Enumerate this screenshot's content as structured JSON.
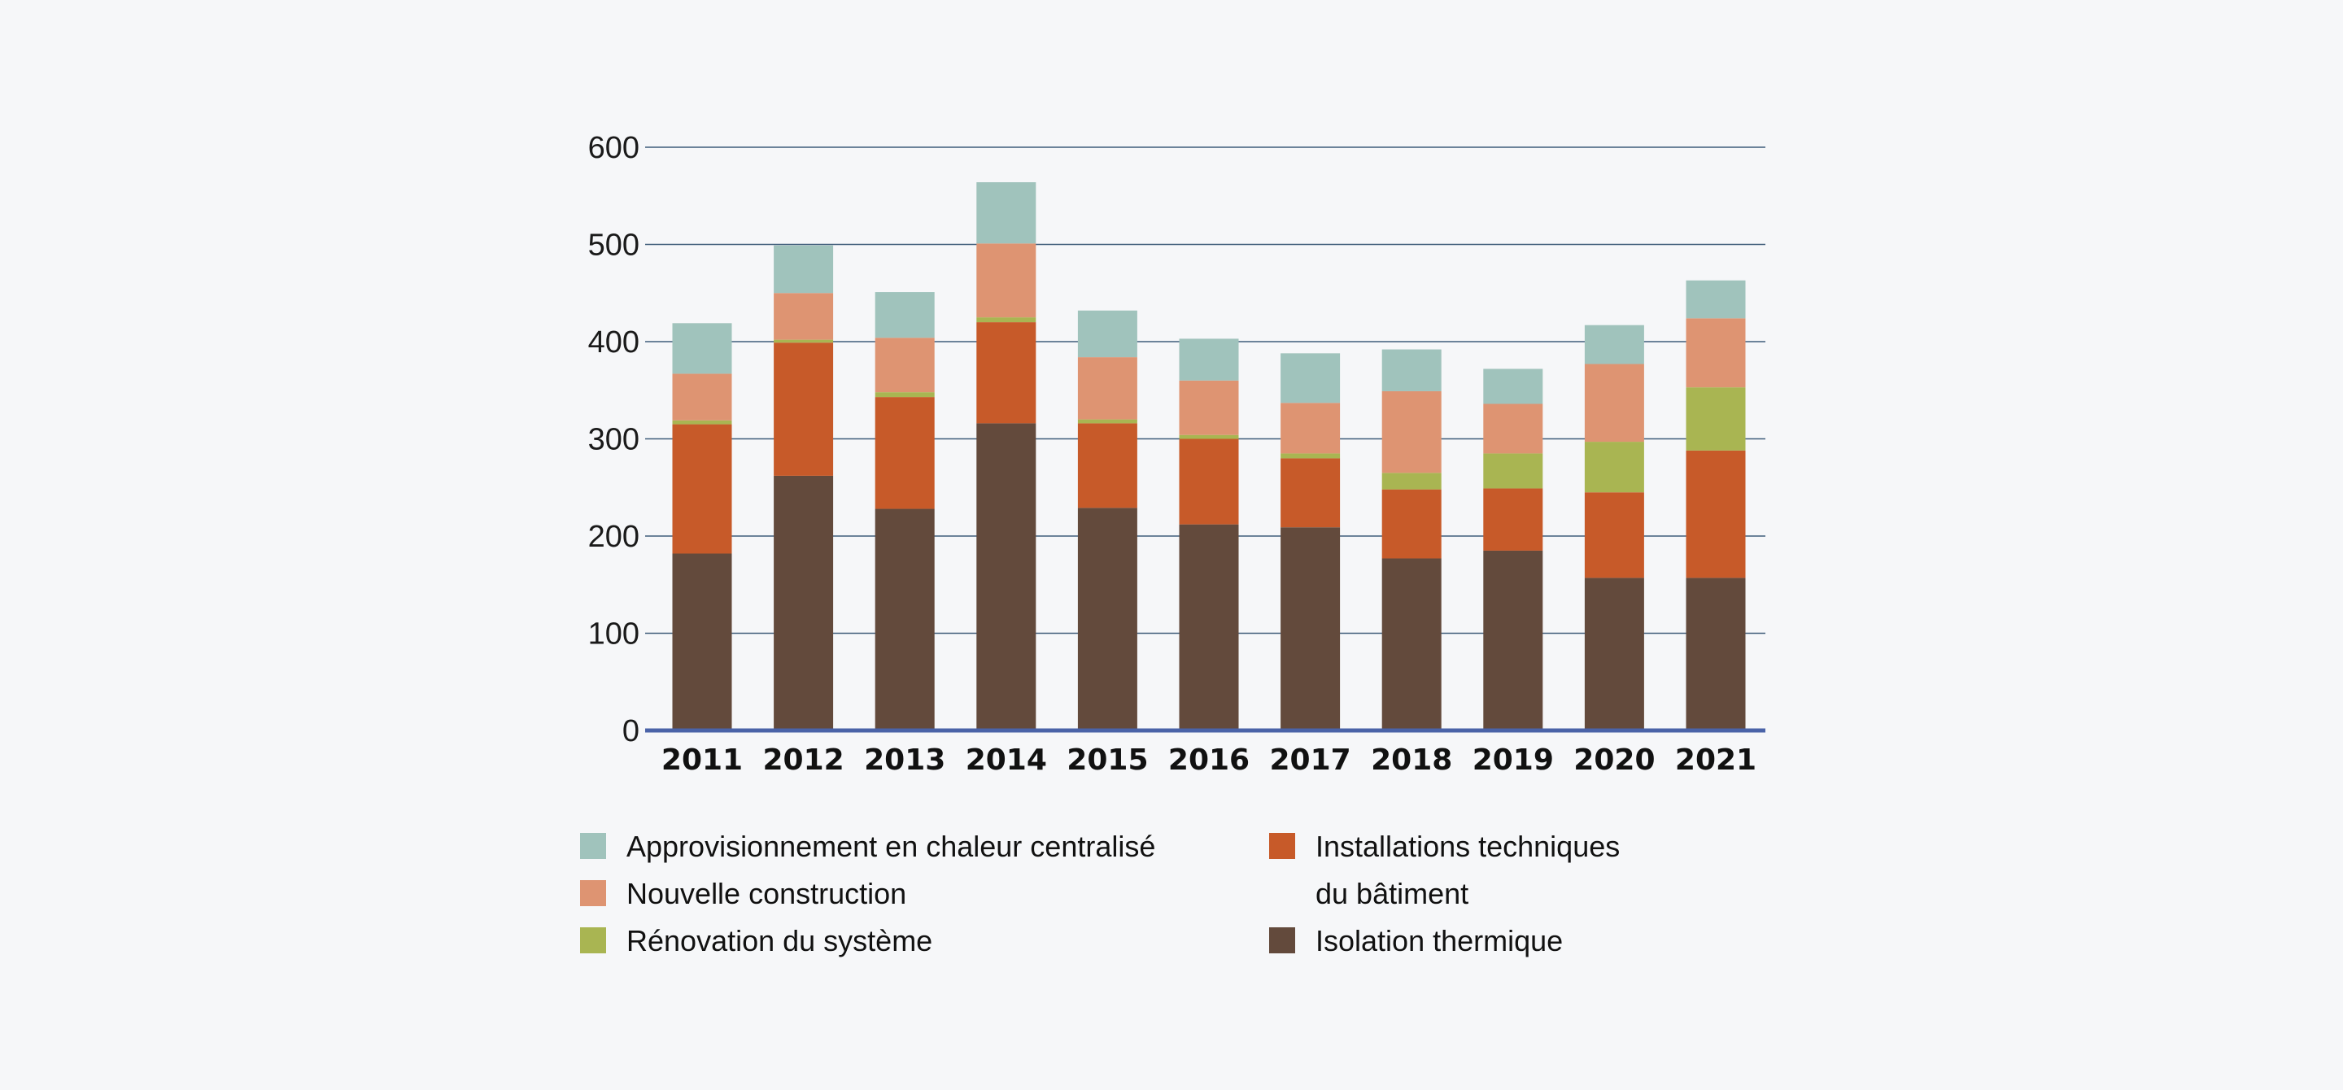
{
  "chart_data": {
    "type": "bar",
    "stacked": true,
    "title": "",
    "xlabel": "",
    "ylabel": "",
    "ylim": [
      0,
      600
    ],
    "yticks": [
      0,
      100,
      200,
      300,
      400,
      500,
      600
    ],
    "grid": true,
    "categories": [
      "2011",
      "2012",
      "2013",
      "2014",
      "2015",
      "2016",
      "2017",
      "2018",
      "2019",
      "2020",
      "2021"
    ],
    "series": [
      {
        "name": "Isolation thermique",
        "color": "#634a3c",
        "values": [
          182,
          262,
          228,
          316,
          229,
          212,
          209,
          177,
          185,
          157,
          157
        ]
      },
      {
        "name": "Installations techniques du bâtiment",
        "color": "#c75a29",
        "values": [
          133,
          137,
          115,
          104,
          87,
          88,
          71,
          71,
          64,
          88,
          131
        ]
      },
      {
        "name": "Rénovation du système",
        "color": "#a9b552",
        "values": [
          4,
          3,
          5,
          5,
          4,
          4,
          5,
          17,
          36,
          52,
          65
        ]
      },
      {
        "name": "Nouvelle construction",
        "color": "#de9472",
        "values": [
          48,
          48,
          56,
          76,
          64,
          56,
          52,
          84,
          51,
          80,
          71
        ]
      },
      {
        "name": "Approvisionnement en chaleur centralisé",
        "color": "#a0c3bc",
        "values": [
          52,
          49,
          47,
          63,
          48,
          43,
          51,
          43,
          36,
          40,
          39
        ]
      }
    ],
    "legend": {
      "placement": "bottom",
      "columns": [
        [
          {
            "label": "Approvisionnement en chaleur centralisé",
            "color": "#a0c3bc"
          },
          {
            "label": "Nouvelle construction",
            "color": "#de9472"
          },
          {
            "label": "Rénovation du système",
            "color": "#a9b552"
          }
        ],
        [
          {
            "label": "Installations techniques",
            "label2": "du bâtiment",
            "color": "#c75a29"
          },
          {
            "label": "Isolation thermique",
            "color": "#634a3c"
          }
        ]
      ]
    },
    "colors": {
      "grid": "#3f5d7a",
      "baseline": "#4a63a8",
      "background": "#f6f7f9"
    }
  }
}
